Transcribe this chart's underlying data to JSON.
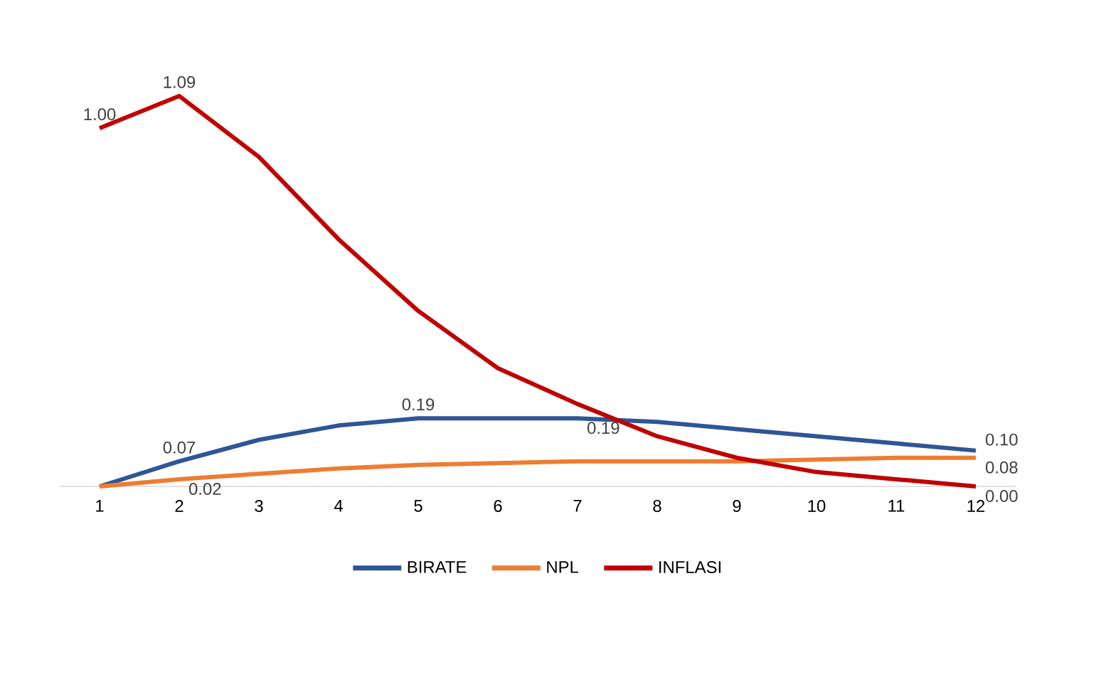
{
  "chart_data": {
    "type": "line",
    "categories": [
      "1",
      "2",
      "3",
      "4",
      "5",
      "6",
      "7",
      "8",
      "9",
      "10",
      "11",
      "12"
    ],
    "tick_labels": "x",
    "legend": "bottom",
    "series": [
      {
        "name": "BIRATE",
        "color": "#2f5597",
        "values": [
          0,
          0.07,
          0.13,
          0.17,
          0.19,
          0.19,
          0.19,
          0.18,
          0.16,
          0.14,
          0.12,
          0.1
        ],
        "value_labels": [
          null,
          "0.07",
          null,
          null,
          "0.19",
          null,
          "0.19",
          null,
          null,
          null,
          null,
          "0.10"
        ]
      },
      {
        "name": "NPL",
        "color": "#ed7d31",
        "values": [
          0,
          0.02,
          0.035,
          0.05,
          0.06,
          0.065,
          0.07,
          0.07,
          0.07,
          0.075,
          0.08,
          0.08
        ],
        "value_labels": [
          null,
          "0.02",
          null,
          null,
          null,
          null,
          null,
          null,
          null,
          null,
          null,
          "0.08"
        ]
      },
      {
        "name": "INFLASI",
        "color": "#c00000",
        "values": [
          1.0,
          1.09,
          0.92,
          0.69,
          0.49,
          0.33,
          0.23,
          0.14,
          0.08,
          0.04,
          0.02,
          0.0
        ],
        "value_labels": [
          "1.00",
          "1.09",
          null,
          null,
          null,
          null,
          null,
          null,
          null,
          null,
          null,
          "0.00"
        ]
      }
    ]
  }
}
